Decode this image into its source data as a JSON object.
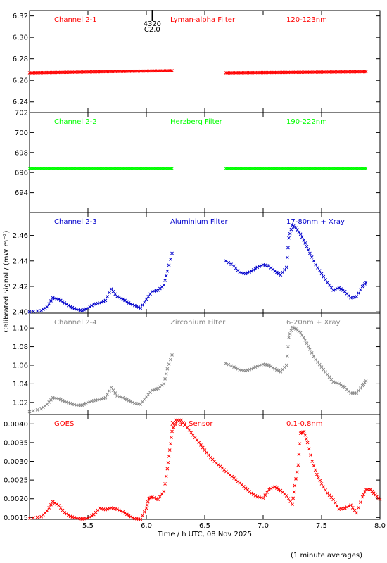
{
  "figure": {
    "ylabel": "Calibrated Signal / (mW m⁻²)",
    "xlabel": "Time / h UTC, 08 Nov 2025",
    "footnote": "(1 minute averages)",
    "flare_marker": {
      "line1": "4320",
      "line2": "C2.0",
      "time": 6.02
    }
  },
  "chart_data": [
    {
      "type": "scatter",
      "labels": [
        "Channel 2-1",
        "Lyman-alpha Filter",
        "120-123nm"
      ],
      "color": "#ff0000",
      "ylim": [
        6.23,
        6.325
      ],
      "yticks": [
        "6.24",
        "6.26",
        "6.28",
        "6.30",
        "6.32"
      ],
      "segments": [
        {
          "x": [
            5.0,
            6.22
          ],
          "y": [
            6.267,
            6.269
          ]
        },
        {
          "x": [
            6.68,
            7.88
          ],
          "y": [
            6.267,
            6.268
          ]
        }
      ]
    },
    {
      "type": "scatter",
      "labels": [
        "Channel 2-2",
        "Herzberg Filter",
        "190-222nm"
      ],
      "color": "#00ff00",
      "ylim": [
        692.0,
        702.0
      ],
      "yticks": [
        "694",
        "696",
        "698",
        "700",
        "702"
      ],
      "segments": [
        {
          "x": [
            5.0,
            6.22
          ],
          "y": [
            696.4,
            696.4
          ]
        },
        {
          "x": [
            6.68,
            7.88
          ],
          "y": [
            696.4,
            696.4
          ]
        }
      ]
    },
    {
      "type": "scatter",
      "labels": [
        "Channel 2-3",
        "Aluminium Filter",
        "17-80nm + Xray"
      ],
      "color": "#0000cc",
      "ylim": [
        2.399,
        2.478
      ],
      "yticks": [
        "2.40",
        "2.42",
        "2.44",
        "2.46"
      ],
      "points": [
        [
          5.0,
          2.4
        ],
        [
          5.1,
          2.401
        ],
        [
          5.15,
          2.404
        ],
        [
          5.2,
          2.411
        ],
        [
          5.25,
          2.41
        ],
        [
          5.3,
          2.407
        ],
        [
          5.35,
          2.404
        ],
        [
          5.4,
          2.402
        ],
        [
          5.45,
          2.401
        ],
        [
          5.5,
          2.403
        ],
        [
          5.55,
          2.406
        ],
        [
          5.6,
          2.407
        ],
        [
          5.65,
          2.409
        ],
        [
          5.7,
          2.418
        ],
        [
          5.75,
          2.412
        ],
        [
          5.8,
          2.41
        ],
        [
          5.85,
          2.407
        ],
        [
          5.9,
          2.405
        ],
        [
          5.95,
          2.403
        ],
        [
          6.0,
          2.41
        ],
        [
          6.05,
          2.416
        ],
        [
          6.1,
          2.417
        ],
        [
          6.15,
          2.421
        ],
        [
          6.18,
          2.432
        ],
        [
          6.22,
          2.446
        ],
        [
          6.68,
          2.44
        ],
        [
          6.75,
          2.436
        ],
        [
          6.8,
          2.431
        ],
        [
          6.85,
          2.43
        ],
        [
          6.9,
          2.432
        ],
        [
          6.95,
          2.435
        ],
        [
          7.0,
          2.437
        ],
        [
          7.05,
          2.436
        ],
        [
          7.1,
          2.432
        ],
        [
          7.15,
          2.429
        ],
        [
          7.2,
          2.435
        ],
        [
          7.22,
          2.458
        ],
        [
          7.25,
          2.468
        ],
        [
          7.28,
          2.466
        ],
        [
          7.32,
          2.461
        ],
        [
          7.36,
          2.454
        ],
        [
          7.4,
          2.446
        ],
        [
          7.45,
          2.437
        ],
        [
          7.5,
          2.43
        ],
        [
          7.55,
          2.423
        ],
        [
          7.6,
          2.417
        ],
        [
          7.65,
          2.419
        ],
        [
          7.7,
          2.416
        ],
        [
          7.75,
          2.411
        ],
        [
          7.8,
          2.412
        ],
        [
          7.85,
          2.42
        ],
        [
          7.88,
          2.423
        ]
      ]
    },
    {
      "type": "scatter",
      "labels": [
        "Channel 2-4",
        "Zirconium Filter",
        "6-20nm + Xray"
      ],
      "color": "#888888",
      "ylim": [
        1.007,
        1.116
      ],
      "yticks": [
        "1.02",
        "1.04",
        "1.06",
        "1.08",
        "1.10"
      ],
      "points": [
        [
          5.0,
          1.01
        ],
        [
          5.1,
          1.013
        ],
        [
          5.15,
          1.018
        ],
        [
          5.2,
          1.025
        ],
        [
          5.25,
          1.024
        ],
        [
          5.3,
          1.021
        ],
        [
          5.35,
          1.019
        ],
        [
          5.4,
          1.017
        ],
        [
          5.45,
          1.017
        ],
        [
          5.5,
          1.02
        ],
        [
          5.55,
          1.022
        ],
        [
          5.6,
          1.023
        ],
        [
          5.65,
          1.025
        ],
        [
          5.7,
          1.036
        ],
        [
          5.75,
          1.027
        ],
        [
          5.8,
          1.025
        ],
        [
          5.85,
          1.022
        ],
        [
          5.9,
          1.019
        ],
        [
          5.95,
          1.018
        ],
        [
          6.0,
          1.026
        ],
        [
          6.05,
          1.033
        ],
        [
          6.1,
          1.035
        ],
        [
          6.15,
          1.04
        ],
        [
          6.18,
          1.056
        ],
        [
          6.22,
          1.071
        ],
        [
          6.68,
          1.062
        ],
        [
          6.75,
          1.058
        ],
        [
          6.8,
          1.055
        ],
        [
          6.85,
          1.054
        ],
        [
          6.9,
          1.056
        ],
        [
          6.95,
          1.059
        ],
        [
          7.0,
          1.061
        ],
        [
          7.05,
          1.06
        ],
        [
          7.1,
          1.056
        ],
        [
          7.15,
          1.053
        ],
        [
          7.2,
          1.06
        ],
        [
          7.22,
          1.09
        ],
        [
          7.25,
          1.101
        ],
        [
          7.28,
          1.099
        ],
        [
          7.32,
          1.095
        ],
        [
          7.36,
          1.087
        ],
        [
          7.4,
          1.077
        ],
        [
          7.45,
          1.066
        ],
        [
          7.5,
          1.058
        ],
        [
          7.55,
          1.05
        ],
        [
          7.6,
          1.042
        ],
        [
          7.65,
          1.04
        ],
        [
          7.7,
          1.036
        ],
        [
          7.75,
          1.03
        ],
        [
          7.8,
          1.03
        ],
        [
          7.85,
          1.038
        ],
        [
          7.88,
          1.043
        ]
      ]
    },
    {
      "type": "scatter",
      "labels": [
        "GOES",
        "Xray Sensor",
        "0.1-0.8nm"
      ],
      "color": "#ff0000",
      "ylim": [
        0.00145,
        0.00425
      ],
      "yticks": [
        "0.0015",
        "0.0020",
        "0.0025",
        "0.0030",
        "0.0035",
        "0.0040"
      ],
      "points": [
        [
          5.0,
          0.00148
        ],
        [
          5.1,
          0.00152
        ],
        [
          5.15,
          0.00168
        ],
        [
          5.2,
          0.00192
        ],
        [
          5.25,
          0.00182
        ],
        [
          5.3,
          0.00163
        ],
        [
          5.35,
          0.00153
        ],
        [
          5.4,
          0.00148
        ],
        [
          5.45,
          0.00146
        ],
        [
          5.5,
          0.00148
        ],
        [
          5.55,
          0.00158
        ],
        [
          5.6,
          0.00175
        ],
        [
          5.65,
          0.00171
        ],
        [
          5.7,
          0.00176
        ],
        [
          5.75,
          0.00172
        ],
        [
          5.8,
          0.00165
        ],
        [
          5.85,
          0.00155
        ],
        [
          5.9,
          0.00147
        ],
        [
          5.95,
          0.00145
        ],
        [
          6.0,
          0.00175
        ],
        [
          6.02,
          0.002
        ],
        [
          6.05,
          0.00205
        ],
        [
          6.1,
          0.00198
        ],
        [
          6.15,
          0.0022
        ],
        [
          6.18,
          0.0028
        ],
        [
          6.2,
          0.0033
        ],
        [
          6.22,
          0.0038
        ],
        [
          6.25,
          0.0041
        ],
        [
          6.3,
          0.0041
        ],
        [
          6.35,
          0.0039
        ],
        [
          6.4,
          0.0037
        ],
        [
          6.45,
          0.0035
        ],
        [
          6.5,
          0.0033
        ],
        [
          6.55,
          0.0031
        ],
        [
          6.6,
          0.00295
        ],
        [
          6.65,
          0.00282
        ],
        [
          6.7,
          0.00268
        ],
        [
          6.75,
          0.00255
        ],
        [
          6.8,
          0.00242
        ],
        [
          6.85,
          0.00228
        ],
        [
          6.9,
          0.00215
        ],
        [
          6.95,
          0.00205
        ],
        [
          7.0,
          0.00202
        ],
        [
          7.05,
          0.00225
        ],
        [
          7.1,
          0.00232
        ],
        [
          7.15,
          0.00222
        ],
        [
          7.2,
          0.00208
        ],
        [
          7.25,
          0.00185
        ],
        [
          7.27,
          0.00235
        ],
        [
          7.3,
          0.0029
        ],
        [
          7.32,
          0.00375
        ],
        [
          7.35,
          0.0038
        ],
        [
          7.38,
          0.0035
        ],
        [
          7.42,
          0.003
        ],
        [
          7.46,
          0.00265
        ],
        [
          7.5,
          0.0024
        ],
        [
          7.55,
          0.00215
        ],
        [
          7.6,
          0.00198
        ],
        [
          7.65,
          0.00172
        ],
        [
          7.7,
          0.00175
        ],
        [
          7.75,
          0.00183
        ],
        [
          7.8,
          0.00162
        ],
        [
          7.85,
          0.00205
        ],
        [
          7.88,
          0.00225
        ],
        [
          7.92,
          0.00225
        ],
        [
          7.96,
          0.0021
        ],
        [
          8.0,
          0.00198
        ]
      ]
    }
  ],
  "x_axis": {
    "xlim": [
      5.0,
      8.0
    ],
    "ticks": [
      5.5,
      6.0,
      6.5,
      7.0,
      7.5,
      8.0
    ],
    "ticklabels": [
      "5.5",
      "6.0",
      "6.5",
      "7.0",
      "7.5",
      "8.0"
    ]
  }
}
